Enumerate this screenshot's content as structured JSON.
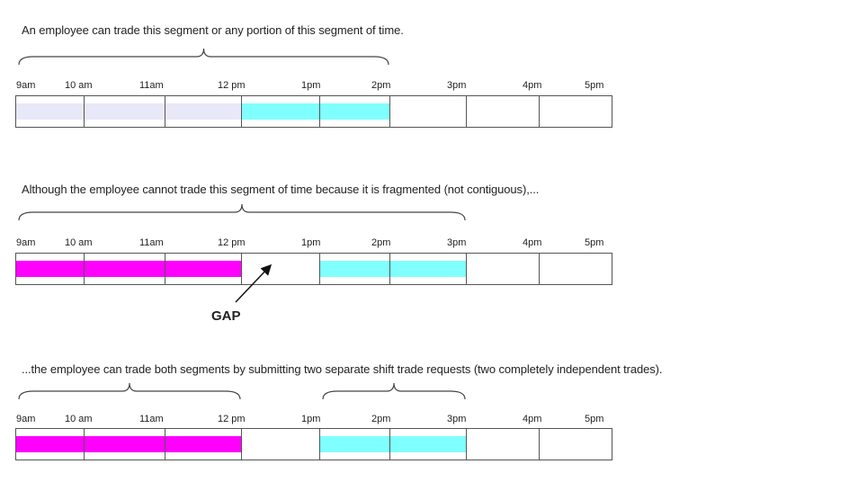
{
  "colors": {
    "tradeable_light": "#e9e8f8",
    "cyan": "#80ffff",
    "magenta": "#ff00ff"
  },
  "hours": [
    "9am",
    "10 am",
    "11am",
    "12 pm",
    "1pm",
    "2pm",
    "3pm",
    "4pm",
    "5pm"
  ],
  "rows": [
    {
      "caption": "An employee can trade this segment or any portion of this segment of time.",
      "segments": [
        {
          "from": 0,
          "to": 3,
          "color": "tradeable_light"
        },
        {
          "from": 3,
          "to": 5,
          "color": "cyan"
        }
      ],
      "braces": [
        {
          "from": 0,
          "to": 5
        }
      ]
    },
    {
      "caption": "Although the employee cannot trade this segment of time because it is fragmented (not contiguous),...",
      "segments": [
        {
          "from": 0,
          "to": 3,
          "color": "magenta"
        },
        {
          "from": 4,
          "to": 6,
          "color": "cyan"
        }
      ],
      "braces": [
        {
          "from": 0,
          "to": 6
        }
      ],
      "gap_label": "GAP"
    },
    {
      "caption": "...the employee can trade both segments by submitting two separate shift trade requests (two completely independent trades).",
      "segments": [
        {
          "from": 0,
          "to": 3,
          "color": "magenta"
        },
        {
          "from": 4,
          "to": 6,
          "color": "cyan"
        }
      ],
      "braces": [
        {
          "from": 0,
          "to": 3
        },
        {
          "from": 4,
          "to": 6
        }
      ]
    }
  ]
}
